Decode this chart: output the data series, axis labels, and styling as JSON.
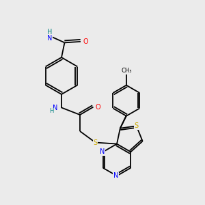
{
  "background_color": "#ebebeb",
  "atom_colors": {
    "C": "#000000",
    "N": "#0000ff",
    "O": "#ff0000",
    "S": "#ccaa00",
    "H": "#008080"
  },
  "bond_lw": 1.3,
  "font_size": 7.0,
  "font_size_small": 6.0
}
